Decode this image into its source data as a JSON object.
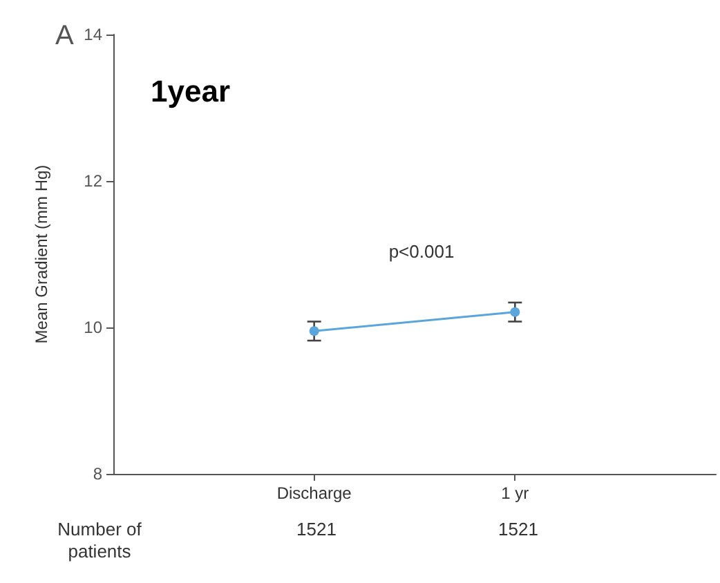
{
  "chart_data": {
    "type": "line",
    "title": "1year",
    "ylabel": "Mean Gradient (mm Hg)",
    "categories": [
      null,
      "Discharge",
      "1 yr",
      null
    ],
    "series": [
      {
        "color": "#5aa5dc",
        "values": [
          null,
          9.95,
          10.21,
          null
        ],
        "errors": [
          null,
          0.13,
          0.13,
          null
        ]
      }
    ],
    "ylim": [
      8,
      14
    ],
    "yticks": [
      8,
      10,
      12,
      14
    ],
    "grid": false,
    "marker": "circle",
    "line_style": "solid",
    "annotations": [
      "A",
      "p<0.001",
      "Number of\npatients",
      "1521",
      "1521"
    ]
  }
}
